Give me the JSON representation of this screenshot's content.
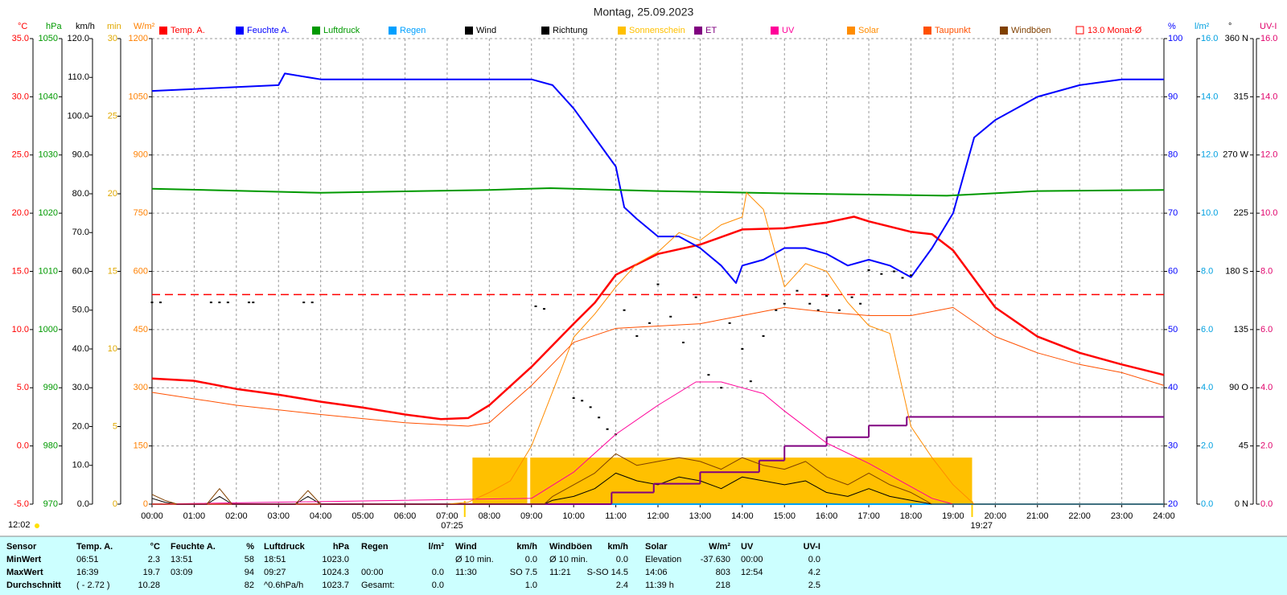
{
  "chart_data": {
    "type": "weather",
    "title": "Montag, 25.09.2023",
    "grid": true,
    "xlim": [
      0,
      24
    ],
    "xticks": [
      {
        "value": 0,
        "label": "00:00"
      },
      {
        "value": 1,
        "label": "01:00"
      },
      {
        "value": 2,
        "label": "02:00"
      },
      {
        "value": 3,
        "label": "03:00"
      },
      {
        "value": 4,
        "label": "04:00"
      },
      {
        "value": 5,
        "label": "05:00"
      },
      {
        "value": 6,
        "label": "06:00"
      },
      {
        "value": 7,
        "label": "07:00"
      },
      {
        "value": 8,
        "label": "08:00"
      },
      {
        "value": 9,
        "label": "09:00"
      },
      {
        "value": 10,
        "label": "10:00"
      },
      {
        "value": 11,
        "label": "11:00"
      },
      {
        "value": 12,
        "label": "12:00"
      },
      {
        "value": 13,
        "label": "13:00"
      },
      {
        "value": 14,
        "label": "14:00"
      },
      {
        "value": 15,
        "label": "15:00"
      },
      {
        "value": 16,
        "label": "16:00"
      },
      {
        "value": 17,
        "label": "17:00"
      },
      {
        "value": 18,
        "label": "18:00"
      },
      {
        "value": 19,
        "label": "19:00"
      },
      {
        "value": 20,
        "label": "20:00"
      },
      {
        "value": 21,
        "label": "21:00"
      },
      {
        "value": 22,
        "label": "22:00"
      },
      {
        "value": 23,
        "label": "23:00"
      },
      {
        "value": 24,
        "label": "24:00"
      }
    ],
    "sun": [
      {
        "label": "07:25",
        "value": 7.4167
      },
      {
        "label": "19:27",
        "value": 19.45
      }
    ],
    "solar_noon": "12:02",
    "axes": [
      {
        "label": "°C",
        "color": "#ff0000",
        "lim": [
          -5,
          35
        ],
        "ticks": [
          {
            "value": -5,
            "label": "-5.0"
          },
          {
            "value": 0,
            "label": "0.0"
          },
          {
            "value": 5,
            "label": "5.0"
          },
          {
            "value": 10,
            "label": "10.0"
          },
          {
            "value": 15,
            "label": "15.0"
          },
          {
            "value": 20,
            "label": "20.0"
          },
          {
            "value": 25,
            "label": "25.0"
          },
          {
            "value": 30,
            "label": "30.0"
          },
          {
            "value": 35,
            "label": "35.0"
          }
        ]
      },
      {
        "label": "hPa",
        "color": "#009900",
        "lim": [
          970,
          1050
        ],
        "ticks": [
          970,
          980,
          990,
          1000,
          1010,
          1020,
          1030,
          1040,
          1050
        ]
      },
      {
        "label": "km/h",
        "color": "#000000",
        "lim": [
          0,
          120
        ],
        "ticks": [
          {
            "value": 0,
            "label": "0.0"
          },
          {
            "value": 10,
            "label": "10.0"
          },
          {
            "value": 20,
            "label": "20.0"
          },
          {
            "value": 30,
            "label": "30.0"
          },
          {
            "value": 40,
            "label": "40.0"
          },
          {
            "value": 50,
            "label": "50.0"
          },
          {
            "value": 60,
            "label": "60.0"
          },
          {
            "value": 70,
            "label": "70.0"
          },
          {
            "value": 80,
            "label": "80.0"
          },
          {
            "value": 90,
            "label": "90.0"
          },
          {
            "value": 100,
            "label": "100.0"
          },
          {
            "value": 110,
            "label": "110.0"
          },
          {
            "value": 120,
            "label": "120.0"
          }
        ]
      },
      {
        "label": "min",
        "color": "#e0a800",
        "lim": [
          0,
          30
        ],
        "ticks": [
          0,
          5,
          10,
          15,
          20,
          25,
          30
        ]
      },
      {
        "label": "W/m²",
        "color": "#ff8000",
        "lim": [
          0,
          1200
        ],
        "ticks": [
          0,
          150,
          300,
          450,
          600,
          750,
          900,
          1050,
          1200
        ]
      },
      {
        "label": "%",
        "color": "#0000ff",
        "lim": [
          20,
          100
        ],
        "ticks": [
          20,
          30,
          40,
          50,
          60,
          70,
          80,
          90,
          100
        ]
      },
      {
        "label": "l/m²",
        "color": "#00a0e0",
        "lim": [
          0,
          16
        ],
        "ticks": [
          {
            "value": 0,
            "label": "0.0"
          },
          {
            "value": 2,
            "label": "2.0"
          },
          {
            "value": 4,
            "label": "4.0"
          },
          {
            "value": 6,
            "label": "6.0"
          },
          {
            "value": 8,
            "label": "8.0"
          },
          {
            "value": 10,
            "label": "10.0"
          },
          {
            "value": 12,
            "label": "12.0"
          },
          {
            "value": 14,
            "label": "14.0"
          },
          {
            "value": 16,
            "label": "16.0"
          }
        ]
      },
      {
        "label": "°",
        "color": "#000000",
        "lim": [
          0,
          360
        ],
        "ticks": [
          {
            "value": 0,
            "label": "0 N"
          },
          45,
          {
            "value": 90,
            "label": "90 O"
          },
          135,
          {
            "value": 180,
            "label": "180 S"
          },
          225,
          {
            "value": 270,
            "label": "270 W"
          },
          315,
          {
            "value": 360,
            "label": "360 N"
          }
        ]
      },
      {
        "label": "UV-I",
        "color": "#e0006a",
        "lim": [
          0,
          16
        ],
        "ticks": [
          {
            "value": 0,
            "label": "0.0"
          },
          {
            "value": 2,
            "label": "2.0"
          },
          {
            "value": 4,
            "label": "4.0"
          },
          {
            "value": 6,
            "label": "6.0"
          },
          {
            "value": 8,
            "label": "8.0"
          },
          {
            "value": 10,
            "label": "10.0"
          },
          {
            "value": 12,
            "label": "12.0"
          },
          {
            "value": 14,
            "label": "14.0"
          },
          {
            "value": 16,
            "label": "16.0"
          }
        ]
      }
    ],
    "series": [
      {
        "name": "Temp. A.",
        "color": "#ff0000",
        "type": "line",
        "axis": 0,
        "width": 2.5,
        "x": [
          0,
          1,
          2,
          3,
          4,
          5,
          6,
          6.85,
          7.5,
          8,
          9,
          10,
          10.5,
          11,
          12,
          13,
          14,
          15,
          16,
          16.65,
          17,
          18,
          18.5,
          19,
          20,
          21,
          22,
          23,
          24
        ],
        "values": [
          5.8,
          5.6,
          4.9,
          4.4,
          3.8,
          3.3,
          2.7,
          2.3,
          2.4,
          3.5,
          6.8,
          10.5,
          12.3,
          14.7,
          16.5,
          17.3,
          18.6,
          18.7,
          19.2,
          19.7,
          19.3,
          18.4,
          18.2,
          16.8,
          11.9,
          9.4,
          8.0,
          7.0,
          6.1
        ]
      },
      {
        "name": "Feuchte A.",
        "color": "#0000ff",
        "type": "line",
        "axis": 5,
        "width": 2,
        "x": [
          0,
          3,
          3.15,
          4,
          9,
          9.5,
          10,
          10.5,
          11,
          11.2,
          11.5,
          12,
          12.5,
          13,
          13.5,
          13.85,
          14,
          14.5,
          15,
          15.5,
          16,
          16.5,
          17,
          17.5,
          18,
          18.5,
          19,
          19.5,
          20,
          21,
          22,
          23,
          24
        ],
        "values": [
          91,
          92,
          94,
          93,
          93,
          92,
          88,
          83,
          78,
          71,
          69,
          66,
          66,
          64,
          61,
          58,
          61,
          62,
          64,
          64,
          63,
          61,
          62,
          61,
          59,
          64,
          70,
          83,
          86,
          90,
          92,
          93,
          93
        ]
      },
      {
        "name": "Luftdruck",
        "color": "#009900",
        "type": "line",
        "axis": 1,
        "width": 2,
        "x": [
          0,
          4,
          8,
          9.45,
          12,
          15,
          17,
          18.85,
          21,
          24
        ],
        "values": [
          1024.2,
          1023.5,
          1024,
          1024.3,
          1023.8,
          1023.4,
          1023.2,
          1023.0,
          1023.8,
          1024
        ]
      },
      {
        "name": "Regen",
        "color": "#00a0ff",
        "type": "line",
        "axis": 6,
        "width": 2,
        "x": [
          0,
          24
        ],
        "values": [
          0,
          0
        ]
      },
      {
        "name": "Wind",
        "color": "#000000",
        "type": "line",
        "axis": 2,
        "width": 1,
        "x": [
          0,
          0.3,
          0.6,
          1.3,
          1.6,
          1.9,
          3.4,
          3.7,
          4,
          9.3,
          9.5,
          10,
          10.5,
          11,
          11.5,
          12,
          12.5,
          13,
          13.5,
          14,
          14.5,
          15,
          15.5,
          16,
          16.5,
          17,
          17.5,
          18,
          18.5,
          24
        ],
        "values": [
          1.5,
          0.5,
          0,
          0,
          2,
          0,
          0,
          2,
          0,
          0,
          1,
          2,
          4,
          8,
          6,
          5,
          7,
          6,
          4,
          7,
          6,
          5,
          6,
          3,
          2,
          4,
          2,
          1,
          0,
          0
        ]
      },
      {
        "name": "Richtung",
        "color": "#000000",
        "type": "scatter",
        "axis": 7,
        "x": [
          0,
          0.2,
          1.4,
          1.6,
          1.8,
          2.3,
          2.4,
          3.6,
          3.8,
          9.1,
          9.3,
          10,
          10.2,
          10.4,
          10.6,
          10.8,
          11,
          11.2,
          11.5,
          11.8,
          12,
          12.3,
          12.6,
          12.9,
          13.2,
          13.5,
          13.7,
          14,
          14.2,
          14.5,
          14.8,
          15,
          15.3,
          15.6,
          15.8,
          16,
          16.3,
          16.6,
          16.8,
          17,
          17.3,
          17.6,
          17.8,
          18
        ],
        "values": [
          156,
          156,
          156,
          156,
          156,
          156,
          156,
          156,
          156,
          153,
          151,
          82,
          80,
          75,
          67,
          58,
          54,
          150,
          130,
          140,
          170,
          145,
          125,
          160,
          100,
          90,
          140,
          120,
          95,
          130,
          150,
          155,
          165,
          155,
          150,
          161,
          150,
          160,
          155,
          181,
          178,
          180,
          175,
          177
        ]
      },
      {
        "name": "Sonnenschein",
        "color": "#ffc000",
        "type": "bars",
        "axis": 3,
        "bins": [
          7.6,
          8.9,
          8.97,
          19.45
        ],
        "values": [
          3,
          0,
          3
        ]
      },
      {
        "name": "ET",
        "color": "#800080",
        "type": "step",
        "axis": 6,
        "width": 2,
        "x": [
          0,
          10.9,
          11.9,
          13.0,
          14.4,
          15.0,
          16.0,
          17.0,
          17.9
        ],
        "values": [
          0,
          0.4,
          0.7,
          1.1,
          1.5,
          2.0,
          2.3,
          2.7,
          3.0
        ]
      },
      {
        "name": "UV",
        "color": "#ff0099",
        "type": "line",
        "axis": 8,
        "width": 1,
        "x": [
          0,
          9,
          10,
          11,
          12,
          12.9,
          13.5,
          14,
          14.5,
          15,
          16,
          17,
          18,
          18.5,
          19,
          24
        ],
        "values": [
          0,
          0.2,
          1.1,
          2.4,
          3.4,
          4.2,
          4.2,
          4.0,
          3.8,
          3.2,
          2.1,
          1.4,
          0.6,
          0.2,
          0,
          0
        ]
      },
      {
        "name": "Solar",
        "color": "#ff8c00",
        "type": "line",
        "axis": 4,
        "width": 1,
        "x": [
          0,
          7,
          7.5,
          8,
          8.5,
          9,
          9.5,
          10,
          10.5,
          11,
          11.5,
          12,
          12.5,
          13,
          13.5,
          14,
          14.1,
          14.5,
          15,
          15.5,
          16,
          16.5,
          17,
          17.5,
          18,
          18.5,
          19,
          19.5,
          24
        ],
        "values": [
          0,
          0,
          5,
          30,
          60,
          150,
          290,
          430,
          490,
          560,
          620,
          650,
          700,
          680,
          720,
          740,
          803,
          760,
          560,
          620,
          600,
          520,
          460,
          440,
          200,
          120,
          50,
          0,
          0
        ]
      },
      {
        "name": "Taupunkt",
        "color": "#ff5000",
        "type": "line",
        "axis": 0,
        "width": 1,
        "x": [
          0,
          2,
          4,
          6,
          7.5,
          8,
          9,
          10,
          11,
          12,
          13,
          14,
          15,
          16,
          17,
          18,
          19,
          20,
          21,
          22,
          23,
          24
        ],
        "values": [
          4.6,
          3.5,
          2.7,
          2.0,
          1.7,
          2.0,
          5.2,
          8.9,
          10.1,
          10.3,
          10.5,
          11.2,
          11.9,
          11.5,
          11.2,
          11.2,
          11.9,
          9.4,
          8.0,
          7.0,
          6.3,
          5.2
        ]
      },
      {
        "name": "Windböen",
        "color": "#804000",
        "type": "line",
        "axis": 2,
        "width": 1,
        "x": [
          0,
          0.3,
          0.6,
          1.3,
          1.6,
          1.9,
          3.4,
          3.7,
          4,
          9.3,
          9.5,
          10,
          10.5,
          11,
          11.5,
          12,
          12.5,
          13,
          13.5,
          14,
          14.5,
          15,
          15.5,
          16,
          16.5,
          17,
          17.5,
          18,
          18.5,
          24
        ],
        "values": [
          2.5,
          1,
          0,
          0,
          4,
          0,
          0,
          3.5,
          0,
          0,
          2,
          5,
          8,
          13,
          10,
          11,
          12,
          11,
          9,
          12,
          10,
          9,
          11,
          7,
          5,
          8,
          5,
          3,
          0,
          0
        ]
      },
      {
        "name": "13.0 Monat-Ø",
        "color": "#ff0000",
        "type": "line",
        "style": "dashed",
        "axis": 0,
        "width": 1.5,
        "x": [
          0,
          24
        ],
        "values": [
          13,
          13
        ]
      }
    ]
  },
  "table": {
    "header": [
      "Sensor",
      "Temp. A.",
      "°C",
      "Feuchte A.",
      "%",
      "Luftdruck",
      "hPa",
      "Regen",
      "l/m²",
      "Wind",
      "km/h",
      "Windböen",
      "km/h",
      "Solar",
      "W/m²",
      "UV",
      "UV-I"
    ],
    "rows": [
      [
        "MinWert",
        "06:51",
        "2.3",
        "13:51",
        "58",
        "18:51",
        "1023.0",
        null,
        null,
        "Ø 10 min.",
        "0.0",
        "Ø 10 min.",
        "0.0",
        "Elevation",
        "-37.630",
        "00:00",
        "0.0"
      ],
      [
        "MaxWert",
        "16:39",
        "19.7",
        "03:09",
        "94",
        "09:27",
        "1024.3",
        "00:00",
        "0.0",
        "11:30",
        "SO 7.5",
        "11:21",
        "S-SO 14.5",
        "14:06",
        "803",
        "12:54",
        "4.2"
      ],
      [
        "Durchschnitt",
        "( - 2.72 )",
        "10.28",
        null,
        "82",
        "^0.6hPa/h",
        "1023.7",
        "Gesamt:",
        "0.0",
        null,
        "1.0",
        null,
        "2.4",
        "11:39 h",
        "218",
        null,
        "2.5"
      ]
    ]
  }
}
